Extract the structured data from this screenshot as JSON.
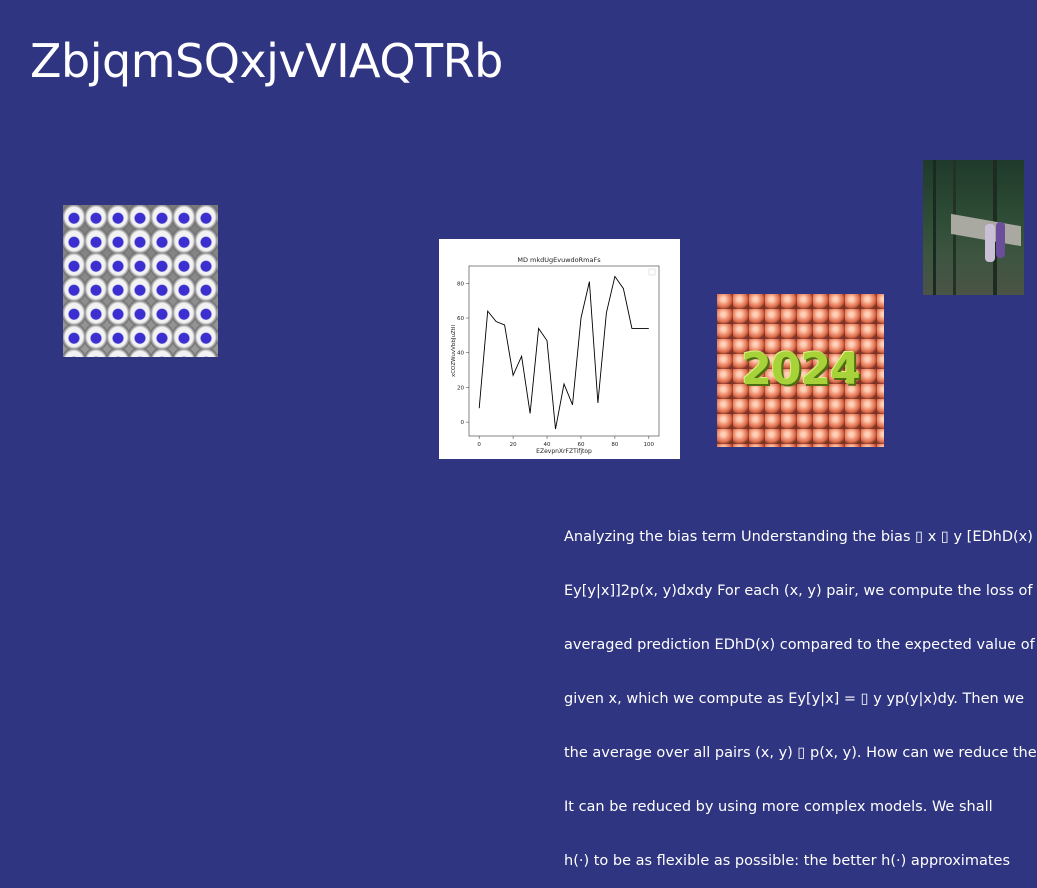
{
  "slide": {
    "title": "ZbjqmSQxjvVIAQTRb",
    "body_lines": [
      "Analyzing the bias term Understanding the bias ▯ x ▯ y [EDhD(x)",
      "Ey[y|x]]2p(x, y)dxdy For each (x, y) pair, we compute the loss of",
      "averaged prediction EDhD(x) compared to the expected value of",
      "given x, which we compute as Ey[y|x] = ▯ y yp(y|x)dy. Then we",
      "the average over all pairs (x, y) ▯ p(x, y). How can we reduce the",
      "It can be reduced by using more complex models. We shall",
      "h(·) to be as flexible as possible: the better h(·) approximates"
    ]
  },
  "images": {
    "seats": "stadium-seats-photo",
    "balls_text": "2024",
    "bench": "forest-bench-photo"
  },
  "colors": {
    "background": "#2f3580",
    "text": "#ffffff",
    "line": "#000000"
  },
  "chart_data": {
    "type": "line",
    "title": "MD mkdUgEvuwdoRmaFs",
    "xlabel": "EZevpnXrFZTifjtop",
    "ylabel": "xCOZWuvVbbJuZtIl",
    "x": [
      0,
      5,
      10,
      15,
      20,
      25,
      30,
      35,
      40,
      45,
      50,
      55,
      60,
      65,
      70,
      75,
      80,
      85,
      90,
      95,
      100
    ],
    "y": [
      8,
      64,
      58,
      56,
      27,
      38,
      5,
      54,
      47,
      -4,
      22,
      10,
      60,
      81,
      11,
      63,
      84,
      77,
      54,
      54,
      54
    ],
    "xticks": [
      0,
      20,
      40,
      60,
      80,
      100
    ],
    "yticks": [
      0,
      20,
      40,
      60,
      80
    ],
    "xlim": [
      -6,
      106
    ],
    "ylim": [
      -8,
      90
    ],
    "grid": false
  }
}
